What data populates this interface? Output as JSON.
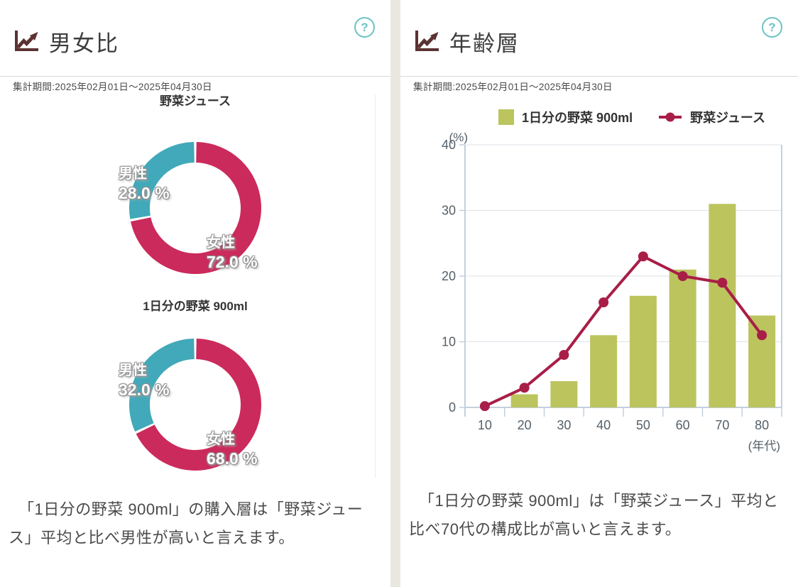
{
  "colors": {
    "background": "#eae7de",
    "panel": "#ffffff",
    "male_teal": "#41a9b9",
    "female_pink": "#cb2a5c",
    "bar_olive": "#bcc45e",
    "line_crimson": "#a81e47",
    "header_icon_maroon": "#5c3232",
    "help_teal": "#6cc3c3",
    "grid_gray": "#dde2e8",
    "axis_gray": "#c3cfdc"
  },
  "panel_gender": {
    "title": "男女比",
    "period": "集計期間:2025年02月01日～2025年04月30日",
    "help": "?",
    "note": "「1日分の野菜 900ml」の購入層は「野菜ジュース」平均と比べ男性が高いと言えます。"
  },
  "panel_age": {
    "title": "年齢層",
    "period": "集計期間:2025年02月01日～2025年04月30日",
    "help": "?",
    "legend": [
      {
        "label": "1日分の野菜 900ml",
        "marker": "bar-square",
        "color": "#bcc45e"
      },
      {
        "label": "野菜ジュース",
        "marker": "line-dot",
        "color": "#a81e47"
      }
    ],
    "note": "「1日分の野菜 900ml」は「野菜ジュース」平均と比べ70代の構成比が高いと言えます。"
  },
  "chart_data": [
    {
      "type": "pie",
      "variant": "donut",
      "title": "野菜ジュース",
      "slices": [
        {
          "label": "男性",
          "value": 28.0,
          "display": "28.0 %",
          "color": "#41a9b9",
          "start_frac": 0.72
        },
        {
          "label": "女性",
          "value": 72.0,
          "display": "72.0 %",
          "color": "#cb2a5c",
          "start_frac": 0.0
        }
      ]
    },
    {
      "type": "pie",
      "variant": "donut",
      "title": "1日分の野菜 900ml",
      "slices": [
        {
          "label": "男性",
          "value": 32.0,
          "display": "32.0 %",
          "color": "#41a9b9",
          "start_frac": 0.68
        },
        {
          "label": "女性",
          "value": 68.0,
          "display": "68.0 %",
          "color": "#cb2a5c",
          "start_frac": 0.0
        }
      ]
    },
    {
      "type": "bar",
      "subtype": "bar+line combo",
      "title": "年齢層",
      "categories": [
        "10",
        "20",
        "30",
        "40",
        "50",
        "60",
        "70",
        "80"
      ],
      "series": [
        {
          "name": "1日分の野菜 900ml",
          "kind": "bar",
          "color": "#bcc45e",
          "values": [
            0,
            2,
            4,
            11,
            17,
            21,
            31,
            14
          ]
        },
        {
          "name": "野菜ジュース",
          "kind": "line",
          "color": "#a81e47",
          "values": [
            0.2,
            3,
            8,
            16,
            23,
            20,
            19,
            11
          ]
        }
      ],
      "ylabel": "(%)",
      "xlabel": "(年代)",
      "ylim": [
        0,
        40
      ],
      "yticks": [
        0,
        10,
        20,
        30,
        40
      ],
      "grid": true,
      "legend_position": "top"
    }
  ]
}
